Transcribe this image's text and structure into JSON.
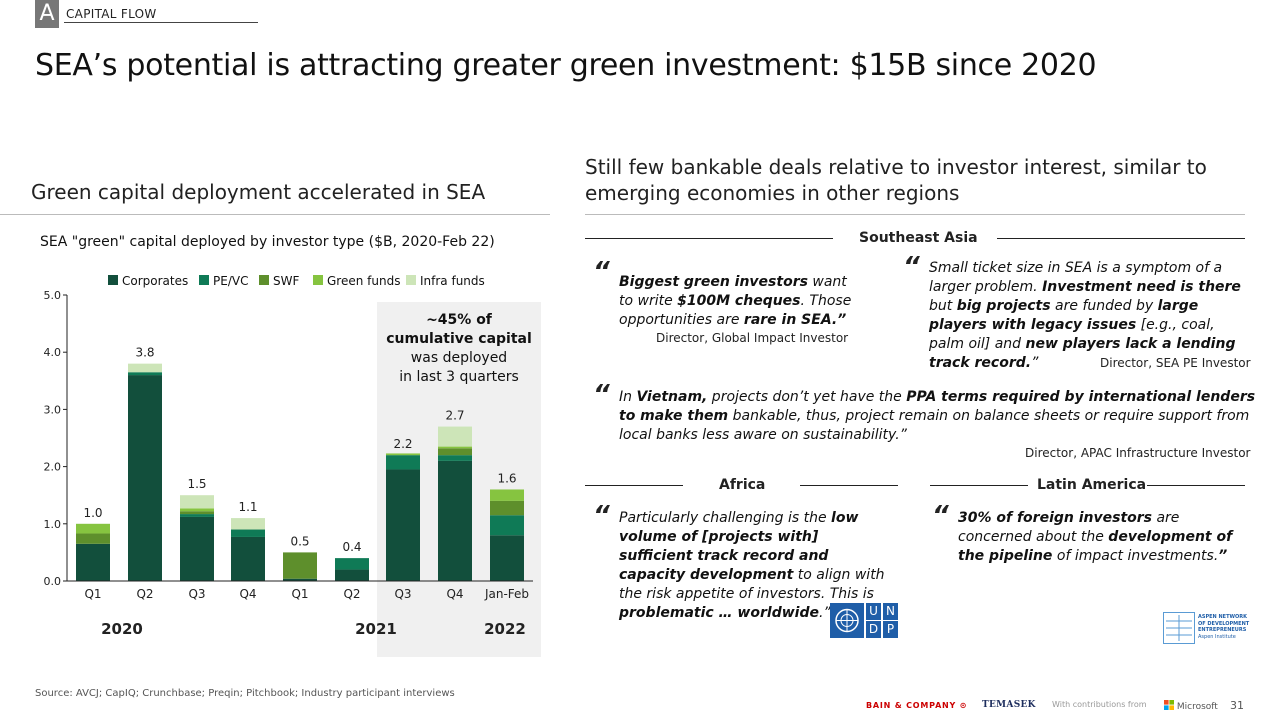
{
  "header": {
    "section_letter": "A",
    "section_label": "CAPITAL FLOW",
    "title": "SEA’s potential is attracting greater green investment: $15B since 2020"
  },
  "left": {
    "heading": "Green capital deployment accelerated in SEA",
    "chart_title": "SEA \"green\" capital deployed by investor type ($B, 2020-Feb 22)"
  },
  "chart_data": {
    "type": "bar",
    "stacked": true,
    "categories": [
      "Q1",
      "Q2",
      "Q3",
      "Q4",
      "Q1",
      "Q2",
      "Q3",
      "Q4",
      "Jan-Feb"
    ],
    "year_labels": [
      "2020",
      "2021",
      "2022"
    ],
    "ylim": [
      0,
      5.0
    ],
    "yticks": [
      "0.0",
      "1.0",
      "2.0",
      "3.0",
      "4.0",
      "5.0"
    ],
    "totals": [
      1.0,
      3.8,
      1.5,
      1.1,
      0.5,
      0.4,
      2.2,
      2.7,
      1.6
    ],
    "total_labels": [
      "1.0",
      "3.8",
      "1.5",
      "1.1",
      "0.5",
      "0.4",
      "2.2",
      "2.7",
      "1.6"
    ],
    "series": [
      {
        "name": "Corporates",
        "color": "#124f3c",
        "values": [
          0.65,
          3.6,
          1.12,
          0.77,
          0.04,
          0.2,
          1.95,
          2.1,
          0.8
        ]
      },
      {
        "name": "PE/VC",
        "color": "#0f7a56",
        "values": [
          0.0,
          0.05,
          0.05,
          0.13,
          0.0,
          0.2,
          0.25,
          0.1,
          0.35
        ]
      },
      {
        "name": "SWF",
        "color": "#5e8f2c",
        "values": [
          0.18,
          0.0,
          0.05,
          0.0,
          0.46,
          0.0,
          0.0,
          0.12,
          0.25
        ]
      },
      {
        "name": "Green funds",
        "color": "#86c440",
        "values": [
          0.17,
          0.0,
          0.05,
          0.0,
          0.0,
          0.0,
          0.03,
          0.03,
          0.2
        ]
      },
      {
        "name": "Infra funds",
        "color": "#cde5b8",
        "values": [
          0.0,
          0.15,
          0.23,
          0.2,
          0.0,
          0.0,
          0.0,
          0.35,
          0.0
        ]
      }
    ],
    "annotation": {
      "line1": "~45% of",
      "line2": "cumulative capital",
      "line3": "was deployed",
      "line4": "in last 3 quarters"
    }
  },
  "source": "Source: AVCJ; CapIQ; Crunchbase; Preqin; Pitchbook; Industry participant interviews",
  "right": {
    "heading": "Still few bankable deals relative to investor interest, similar to emerging economies in other regions",
    "regions": {
      "sea": "Southeast Asia",
      "africa": "Africa",
      "latam": "Latin America"
    },
    "quotes": {
      "q1": {
        "b1": "Biggest green investors",
        "t1": " want to write ",
        "b2": "$100M cheques",
        "t2": ". Those opportunities are ",
        "b3": "rare in SEA.”",
        "attribution": "Director, Global Impact Investor"
      },
      "q2": {
        "t1": "Small ticket size in SEA is a symptom of a larger problem. ",
        "b1": "Investment need is there",
        "t2": " but ",
        "b2": "big projects",
        "t3": " are funded by ",
        "b3": "large players with legacy issues",
        "t4": " [e.g., coal, palm oil] and ",
        "b4": "new players lack a lending track record.",
        "t5": "”",
        "attribution": "Director, SEA PE Investor"
      },
      "q3": {
        "t1": "In ",
        "b1": "Vietnam,",
        "t2": " projects don’t yet have the ",
        "b2": "PPA terms required by international lenders to make them",
        "t3": " bankable, thus, project remain on balance sheets or require support from local banks less aware on sustainability.”",
        "attribution": "Director, APAC Infrastructure Investor"
      },
      "q4": {
        "t1": "Particularly challenging is the ",
        "b1": "low volume of [projects with] sufficient track record and capacity development",
        "t2": " to align with the risk appetite of investors. This is ",
        "b2": "problematic … worldwide",
        "t3": ".”"
      },
      "q5": {
        "b1": "30% of foreign investors",
        "t1": " are concerned about the ",
        "b2": "development of the pipeline",
        "t2": " of impact investments.",
        "b3": "”"
      }
    },
    "undp_letters": [
      "U",
      "N",
      "D",
      "P"
    ],
    "ande_text": [
      "ASPEN NETWORK",
      "OF DEVELOPMENT",
      "ENTREPRENEURS",
      "Aspen Institute"
    ]
  },
  "footer": {
    "bain": "BAIN & COMPANY",
    "temasek": "TEMASEK",
    "with": "With contributions from",
    "microsoft": "Microsoft",
    "page": "31"
  }
}
